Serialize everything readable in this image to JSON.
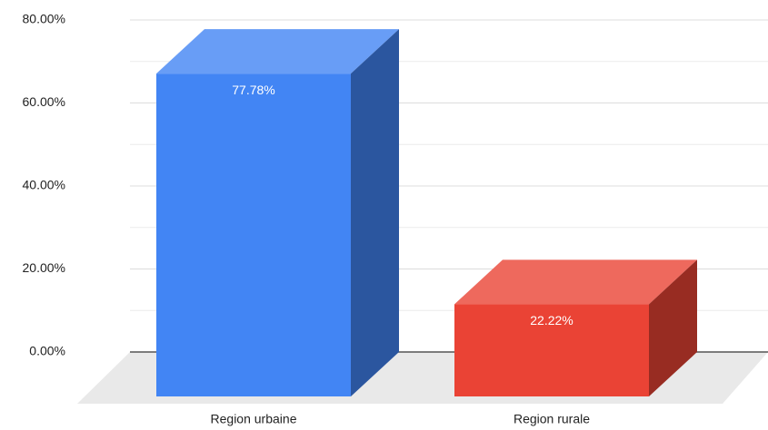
{
  "chart_data": {
    "type": "bar3d",
    "categories": [
      "Region urbaine",
      "Region rurale"
    ],
    "values": [
      77.78,
      22.22
    ],
    "value_labels": [
      "77.78%",
      "22.22%"
    ],
    "colors": [
      "#4285f4",
      "#ea4335"
    ],
    "ylim": [
      0,
      80
    ],
    "yticks": [
      {
        "value": 0,
        "label": "0.00%"
      },
      {
        "value": 20,
        "label": "20.00%"
      },
      {
        "value": 40,
        "label": "40.00%"
      },
      {
        "value": 60,
        "label": "60.00%"
      },
      {
        "value": 80,
        "label": "80.00%"
      }
    ],
    "minor_yticks": [
      10,
      30,
      50,
      70
    ],
    "grid": true
  }
}
